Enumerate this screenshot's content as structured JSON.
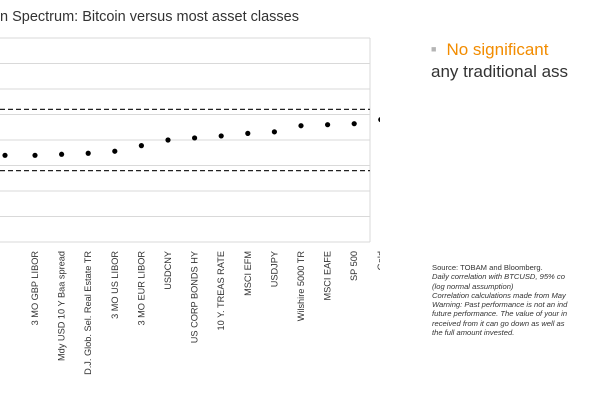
{
  "title": "n Spectrum: Bitcoin versus most asset classes",
  "bullet": {
    "line1": "No significant",
    "line2": "any traditional ass"
  },
  "source": {
    "line1": "Source: TOBAM and Bloomberg.",
    "line2": "Daily correlation with BTCUSD, 95% co",
    "line3": "(log normal assumption)",
    "line4": "Correlation calculations made from May",
    "line5": "Warning: Past performance is not an ind",
    "line6": "future performance. The value of your in",
    "line7": "received from it can go down as well as",
    "line8": "the full amount invested."
  },
  "colors": {
    "accent": "#f28c00",
    "points": "#000000",
    "grid": "#d9d9d9"
  },
  "chart_data": {
    "type": "scatter",
    "title": "n Spectrum: Bitcoin versus most asset classes",
    "categories": [
      "3 MO GBP LIBOR",
      "Mdy USD 10 Y Baa spread",
      "D.J. Glob. Sel. Real Estate TR",
      "3 MO US LIBOR",
      "3 MO EUR LIBOR",
      "USDCNY",
      "US CORP BONDS HY",
      "10 Y. TREAS RATE",
      "MSCI EFM",
      "USDJPY",
      "Wilshire 5000 TR",
      "MSCI EAFE",
      "SP 500",
      "Gold"
    ],
    "values": [
      -0.03,
      -0.028,
      -0.026,
      -0.022,
      -0.011,
      0.0,
      0.004,
      0.008,
      0.013,
      0.016,
      0.028,
      0.03,
      0.032,
      0.04
    ],
    "hidden_left_values": [
      -0.03
    ],
    "confidence_band": [
      -0.06,
      0.06
    ],
    "ylim": [
      -0.2,
      0.2
    ],
    "grid": true,
    "xlabel": "",
    "ylabel": ""
  }
}
